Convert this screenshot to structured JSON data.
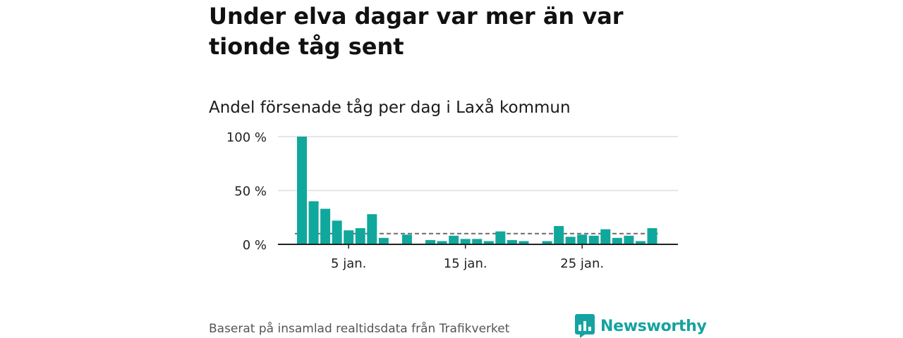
{
  "header": {
    "title": "Under elva dagar var mer än var tionde tåg sent",
    "subtitle": "Andel försenade tåg per dag i Laxå kommun"
  },
  "footer": {
    "source": "Baserat på insamlad realtidsdata från Trafikverket",
    "brand": "Newsworthy"
  },
  "colors": {
    "bar": "#10a89c",
    "reference_line": "#6b6b6b",
    "grid": "#dddddd",
    "axis": "#222222",
    "brand": "#14a3a0"
  },
  "icons": {
    "brand_logo": "newsworthy-bar-chart-logo-icon"
  },
  "chart_data": {
    "type": "bar",
    "title": "Andel försenade tåg per dag i Laxå kommun",
    "xlabel": "",
    "ylabel": "",
    "x": [
      1,
      2,
      3,
      4,
      5,
      6,
      7,
      8,
      9,
      10,
      11,
      12,
      13,
      14,
      15,
      16,
      17,
      18,
      19,
      20,
      21,
      22,
      23,
      24,
      25,
      26,
      27,
      28,
      29,
      30,
      31
    ],
    "values": [
      100,
      40,
      33,
      22,
      13,
      15,
      28,
      6,
      null,
      9,
      null,
      4,
      3,
      8,
      5,
      5,
      3,
      12,
      4,
      3,
      null,
      3,
      17,
      7,
      9,
      8,
      14,
      6,
      8,
      3,
      15
    ],
    "reference_value": 10,
    "ylim": [
      0,
      100
    ],
    "yticks": [
      0,
      50,
      100
    ],
    "ytick_labels": [
      "0 %",
      "50 %",
      "100 %"
    ],
    "xticks": [
      5,
      15,
      25
    ],
    "xtick_labels": [
      "5 jan.",
      "15 jan.",
      "25 jan."
    ],
    "grid": true
  }
}
